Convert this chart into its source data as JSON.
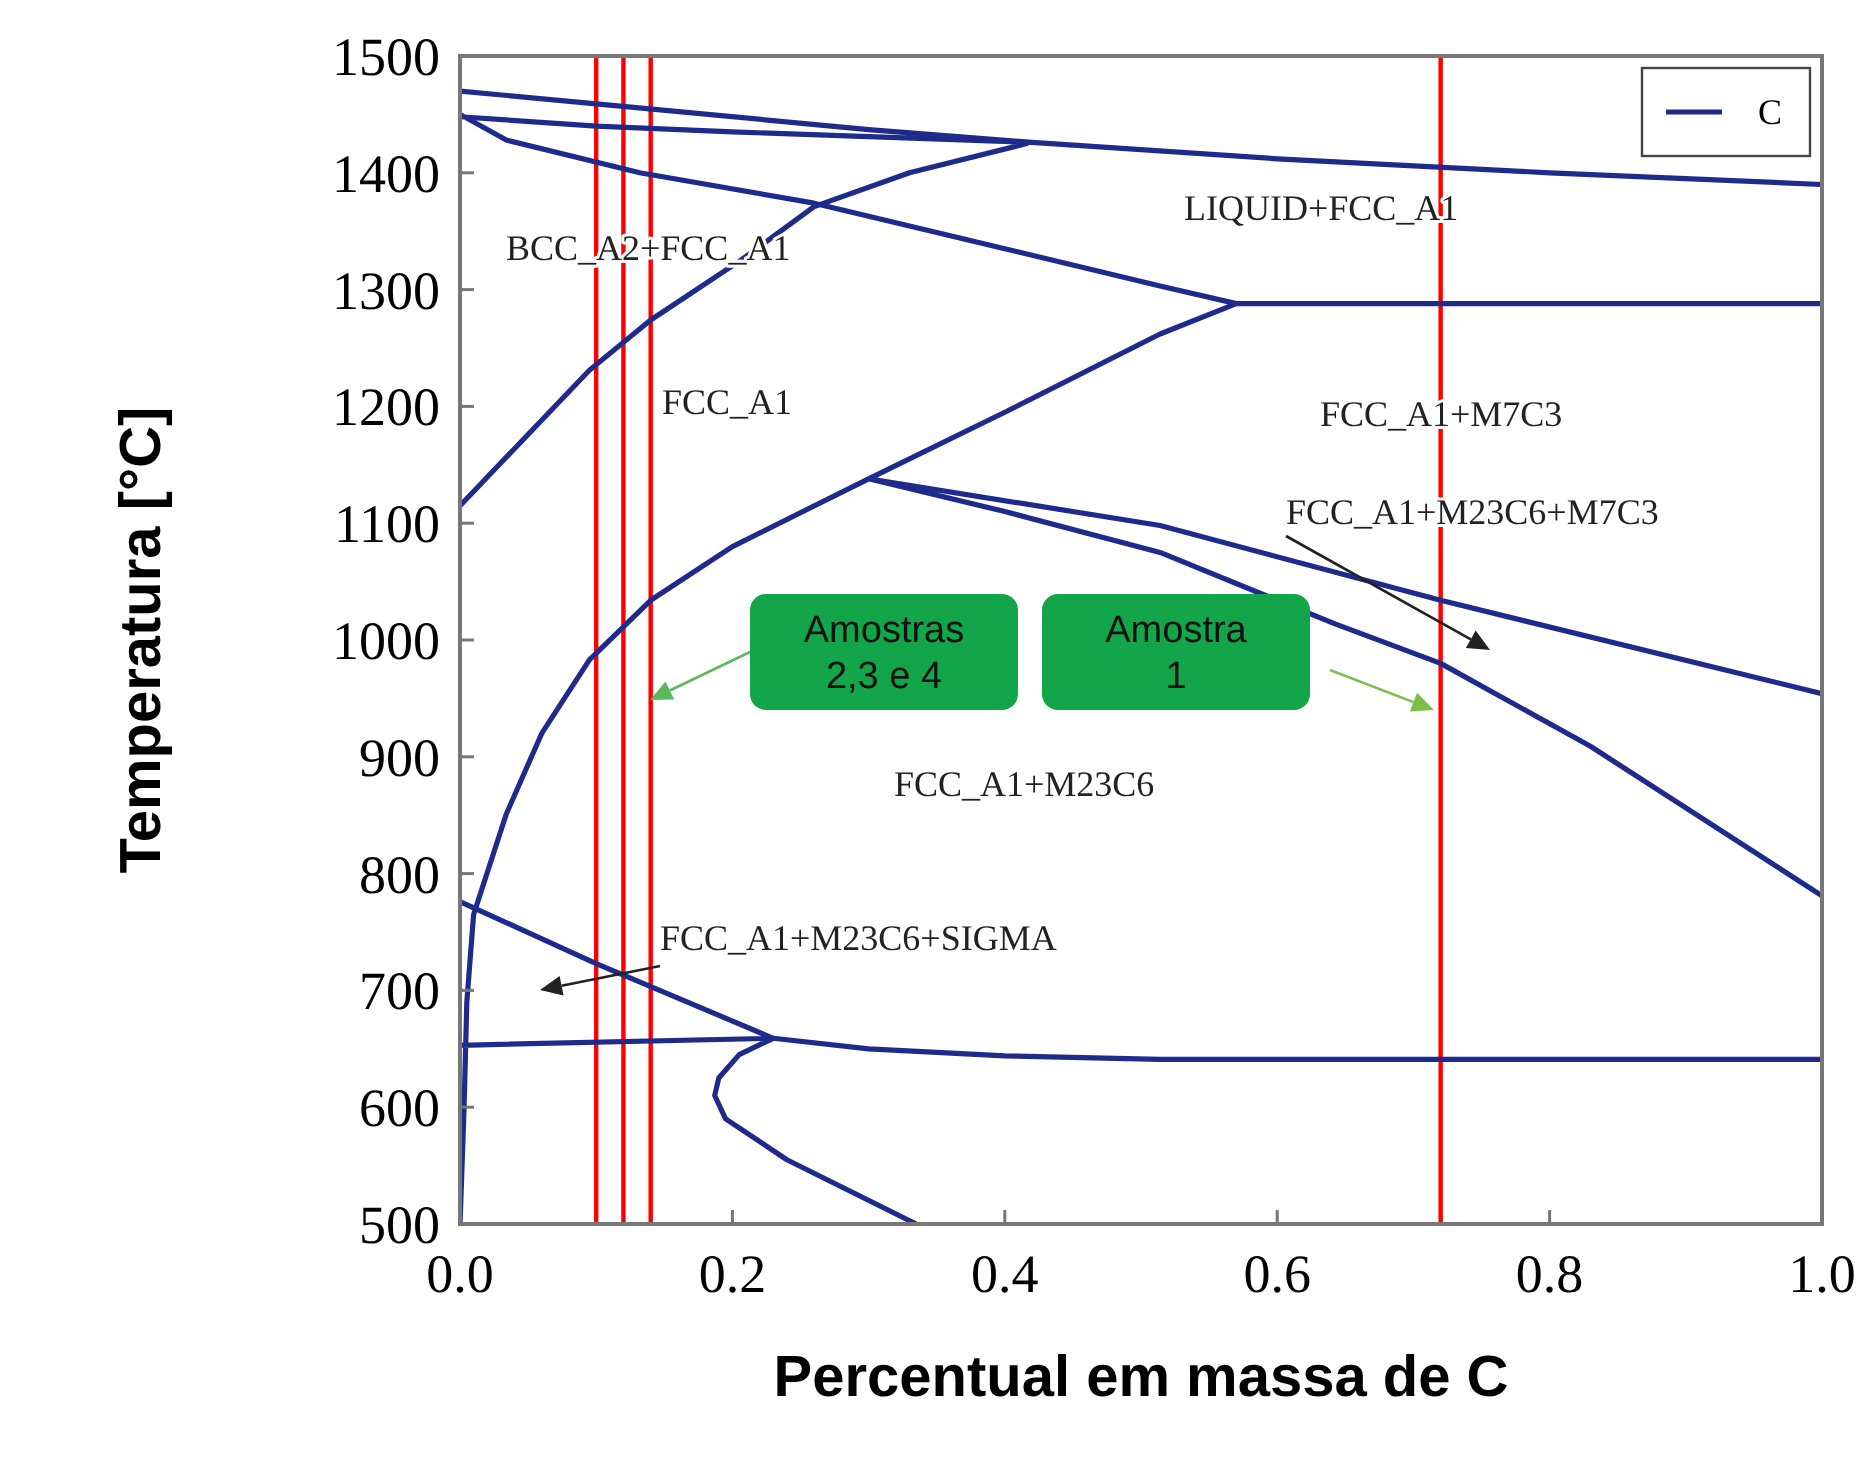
{
  "chart_data": {
    "type": "line",
    "xlabel": "Percentual em massa de C",
    "ylabel": "Temperatura [°C]",
    "xlim": [
      0,
      1
    ],
    "ylim": [
      500,
      1500
    ],
    "xticks": [
      {
        "value": 0,
        "label": "0.0"
      },
      {
        "value": 0.2,
        "label": "0.2"
      },
      {
        "value": 0.4,
        "label": "0.4"
      },
      {
        "value": 0.6,
        "label": "0.6"
      },
      {
        "value": 0.8,
        "label": "0.8"
      },
      {
        "value": 1,
        "label": "1.0"
      }
    ],
    "yticks": [
      500,
      600,
      700,
      800,
      900,
      1000,
      1100,
      1200,
      1300,
      1400,
      1500
    ],
    "legend": "top right",
    "series": [
      {
        "name": "C",
        "color": "#1f2b8c",
        "x": [
          0,
          0.1,
          0.3,
          0.42,
          0.6,
          0.8,
          1.0,
          null,
          0,
          0.1,
          0.2,
          0.3,
          0.42,
          null,
          0,
          0.034,
          0.132,
          0.26,
          0.4,
          0.514,
          0.57,
          1.0,
          null,
          0,
          0.095,
          0.14,
          0.206,
          0.26,
          0.33,
          0.416,
          null,
          0,
          0.003,
          0.005,
          0.01,
          0.034,
          0.06,
          0.095,
          0.14,
          0.2,
          0.3,
          0.4,
          0.514,
          0.57,
          null,
          0.3,
          0.514,
          0.72,
          1.0,
          null,
          0.3,
          0.4,
          0.514,
          0.642,
          0.72,
          0.83,
          1.0,
          null,
          0,
          0.1,
          0.23,
          null,
          0,
          0.23,
          0.3,
          0.4,
          0.514,
          1.0,
          null,
          0.23,
          0.205,
          0.19,
          0.187,
          0.195,
          0.24,
          0.335
        ],
        "values": [
          1470,
          1459,
          1437,
          1426,
          1412,
          1400,
          1390,
          null,
          1448,
          1440,
          1435,
          1431,
          1426,
          null,
          1450,
          1428,
          1400,
          1374,
          1335,
          1303,
          1288,
          1288,
          null,
          1115,
          1231,
          1274,
          1325,
          1371,
          1400,
          1425,
          null,
          500,
          600,
          690,
          765,
          851,
          920,
          983,
          1034,
          1080,
          1138,
          1195,
          1262,
          1288,
          null,
          1138,
          1098,
          1034,
          954,
          null,
          1138,
          1110,
          1075,
          1014,
          980,
          909,
          781,
          null,
          776,
          723,
          659,
          null,
          653,
          659,
          650,
          644,
          641,
          641,
          null,
          659,
          645,
          625,
          610,
          590,
          555,
          500
        ]
      }
    ],
    "ref_lines": [
      {
        "axis": "x",
        "value": 0.1,
        "color": "#ff0000"
      },
      {
        "axis": "x",
        "value": 0.12,
        "color": "#ff0000"
      },
      {
        "axis": "x",
        "value": 0.14,
        "color": "#ff0000"
      },
      {
        "axis": "x",
        "value": 0.72,
        "color": "#ff0000"
      }
    ],
    "annotations": [
      "BCC_A2+FCC_A1",
      "LIQUID+FCC_A1",
      "FCC_A1",
      "FCC_A1+M7C3",
      "FCC_A1+M23C6+M7C3",
      "FCC_A1+M23C6",
      "FCC_A1+M23C6+SIGMA",
      "Amostras\n2,3 e 4",
      "Amostra\n1"
    ]
  }
}
